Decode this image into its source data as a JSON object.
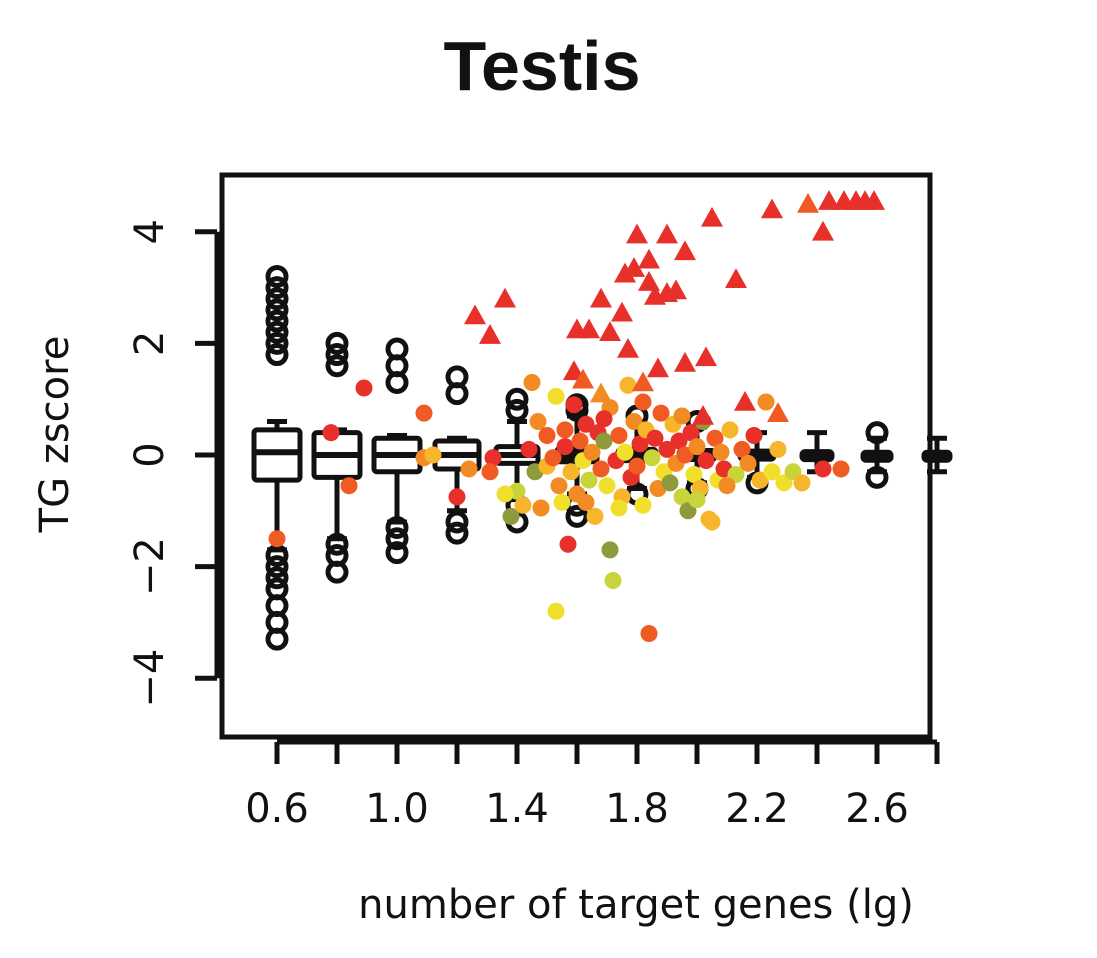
{
  "chart_data": {
    "type": "scatter",
    "title": "Testis",
    "xlabel": "number of target genes (lg)",
    "ylabel": "TG  zscore",
    "xlim": [
      0.4,
      2.85
    ],
    "ylim": [
      -5.0,
      5.0
    ],
    "xticks": [
      0.6,
      0.8,
      1.0,
      1.2,
      1.4,
      1.6,
      1.8,
      2.0,
      2.2,
      2.4,
      2.6,
      2.8
    ],
    "xtick_labels": [
      "0.6",
      "1.0",
      "1.4",
      "1.8",
      "2.2",
      "2.6"
    ],
    "xtick_label_values": [
      0.6,
      1.0,
      1.4,
      1.8,
      2.2,
      2.6
    ],
    "yticks": [
      -4,
      -2,
      0,
      2,
      4
    ],
    "ytick_labels": [
      "−4",
      "−2",
      "0",
      "2",
      "4"
    ],
    "grid": false,
    "boxplots": [
      {
        "x": 0.6,
        "q1": -0.45,
        "median": 0.05,
        "q3": 0.45,
        "whisker_low": -1.7,
        "whisker_high": 0.6,
        "outliers": [
          1.8,
          2.0,
          2.2,
          2.4,
          2.6,
          2.8,
          3.0,
          3.2,
          -1.8,
          -2.0,
          -2.2,
          -2.4,
          -2.7,
          -3.0,
          -3.3
        ]
      },
      {
        "x": 0.8,
        "q1": -0.4,
        "median": 0.0,
        "q3": 0.4,
        "whisker_low": -1.5,
        "whisker_high": 0.45,
        "outliers": [
          1.6,
          1.8,
          2.0,
          -1.6,
          -1.8,
          -2.1
        ]
      },
      {
        "x": 1.0,
        "q1": -0.3,
        "median": 0.0,
        "q3": 0.3,
        "whisker_low": -1.2,
        "whisker_high": 0.35,
        "outliers": [
          1.3,
          1.6,
          1.9,
          -1.3,
          -1.5,
          -1.75
        ]
      },
      {
        "x": 1.2,
        "q1": -0.25,
        "median": 0.0,
        "q3": 0.25,
        "whisker_low": -1.0,
        "whisker_high": 0.3,
        "outliers": [
          1.1,
          1.4,
          -1.2,
          -1.4
        ]
      },
      {
        "x": 1.4,
        "q1": -0.15,
        "median": 0.0,
        "q3": 0.15,
        "whisker_low": -0.8,
        "whisker_high": 0.6,
        "outliers": [
          0.8,
          1.0,
          -0.9,
          -1.2
        ]
      },
      {
        "x": 1.6,
        "q1": -0.12,
        "median": 0.0,
        "q3": 0.12,
        "whisker_low": -0.7,
        "whisker_high": 0.7,
        "outliers": [
          0.8,
          0.9,
          -0.9,
          -1.1
        ]
      },
      {
        "x": 1.8,
        "q1": -0.1,
        "median": 0.0,
        "q3": 0.1,
        "whisker_low": -0.6,
        "whisker_high": 0.6,
        "outliers": [
          0.7,
          -0.7
        ]
      },
      {
        "x": 2.0,
        "q1": -0.08,
        "median": 0.0,
        "q3": 0.08,
        "whisker_low": -0.5,
        "whisker_high": 0.5,
        "outliers": [
          0.6,
          -0.6
        ]
      },
      {
        "x": 2.2,
        "q1": -0.07,
        "median": 0.0,
        "q3": 0.07,
        "whisker_low": -0.4,
        "whisker_high": 0.4,
        "outliers": [
          -0.5
        ]
      },
      {
        "x": 2.4,
        "q1": -0.06,
        "median": 0.0,
        "q3": 0.06,
        "whisker_low": -0.3,
        "whisker_high": 0.4,
        "outliers": []
      },
      {
        "x": 2.6,
        "q1": -0.05,
        "median": 0.0,
        "q3": 0.05,
        "whisker_low": -0.3,
        "whisker_high": 0.3,
        "outliers": [
          0.4,
          -0.4
        ]
      },
      {
        "x": 2.8,
        "q1": -0.05,
        "median": 0.0,
        "q3": 0.05,
        "whisker_low": -0.3,
        "whisker_high": 0.3,
        "outliers": []
      }
    ],
    "triangles": [
      {
        "x": 1.26,
        "y": 2.5,
        "color": "#e8302a"
      },
      {
        "x": 1.31,
        "y": 2.15,
        "color": "#e8302a"
      },
      {
        "x": 1.36,
        "y": 2.8,
        "color": "#e8302a"
      },
      {
        "x": 1.6,
        "y": 2.25,
        "color": "#e8302a"
      },
      {
        "x": 1.64,
        "y": 2.25,
        "color": "#e8302a"
      },
      {
        "x": 1.68,
        "y": 2.8,
        "color": "#e8302a"
      },
      {
        "x": 1.71,
        "y": 2.2,
        "color": "#e8302a"
      },
      {
        "x": 1.75,
        "y": 2.55,
        "color": "#e8302a"
      },
      {
        "x": 1.77,
        "y": 1.9,
        "color": "#e8302a"
      },
      {
        "x": 1.76,
        "y": 3.25,
        "color": "#e8302a"
      },
      {
        "x": 1.8,
        "y": 3.95,
        "color": "#e8302a"
      },
      {
        "x": 1.79,
        "y": 3.35,
        "color": "#e8302a"
      },
      {
        "x": 1.84,
        "y": 3.5,
        "color": "#e8302a"
      },
      {
        "x": 1.84,
        "y": 3.1,
        "color": "#e8302a"
      },
      {
        "x": 1.86,
        "y": 2.85,
        "color": "#e8302a"
      },
      {
        "x": 1.9,
        "y": 2.9,
        "color": "#e8302a"
      },
      {
        "x": 1.9,
        "y": 3.95,
        "color": "#e8302a"
      },
      {
        "x": 1.93,
        "y": 2.95,
        "color": "#e8302a"
      },
      {
        "x": 1.96,
        "y": 3.65,
        "color": "#e8302a"
      },
      {
        "x": 1.87,
        "y": 1.55,
        "color": "#e8302a"
      },
      {
        "x": 1.96,
        "y": 1.65,
        "color": "#e8302a"
      },
      {
        "x": 2.03,
        "y": 1.75,
        "color": "#e8302a"
      },
      {
        "x": 2.05,
        "y": 4.25,
        "color": "#e8302a"
      },
      {
        "x": 2.13,
        "y": 3.15,
        "color": "#e8302a"
      },
      {
        "x": 2.25,
        "y": 4.4,
        "color": "#e8302a"
      },
      {
        "x": 2.37,
        "y": 4.5,
        "color": "#f05a23"
      },
      {
        "x": 2.44,
        "y": 4.55,
        "color": "#e8302a"
      },
      {
        "x": 2.42,
        "y": 4.0,
        "color": "#e8302a"
      },
      {
        "x": 2.49,
        "y": 4.55,
        "color": "#e8302a"
      },
      {
        "x": 2.53,
        "y": 4.55,
        "color": "#e8302a"
      },
      {
        "x": 2.56,
        "y": 4.55,
        "color": "#e8302a"
      },
      {
        "x": 2.59,
        "y": 4.55,
        "color": "#e8302a"
      },
      {
        "x": 1.59,
        "y": 1.5,
        "color": "#e8302a"
      },
      {
        "x": 1.62,
        "y": 1.35,
        "color": "#f05a23"
      },
      {
        "x": 1.68,
        "y": 1.1,
        "color": "#f28b24"
      },
      {
        "x": 1.82,
        "y": 1.3,
        "color": "#f05a23"
      },
      {
        "x": 2.16,
        "y": 0.95,
        "color": "#e8302a"
      },
      {
        "x": 2.27,
        "y": 0.75,
        "color": "#f05a23"
      },
      {
        "x": 2.02,
        "y": 0.7,
        "color": "#e8302a"
      }
    ],
    "points": [
      {
        "x": 0.6,
        "y": -1.5,
        "color": "#f05a23"
      },
      {
        "x": 0.78,
        "y": 0.4,
        "color": "#e8302a"
      },
      {
        "x": 0.84,
        "y": -0.55,
        "color": "#f05a23"
      },
      {
        "x": 0.89,
        "y": 1.2,
        "color": "#e8302a"
      },
      {
        "x": 1.09,
        "y": 0.75,
        "color": "#f05a23"
      },
      {
        "x": 1.09,
        "y": -0.05,
        "color": "#f28b24"
      },
      {
        "x": 1.12,
        "y": 0.0,
        "color": "#f7b52c"
      },
      {
        "x": 1.2,
        "y": -0.75,
        "color": "#e8302a"
      },
      {
        "x": 1.24,
        "y": -0.25,
        "color": "#f28b24"
      },
      {
        "x": 1.32,
        "y": -0.05,
        "color": "#e8302a"
      },
      {
        "x": 1.31,
        "y": -0.3,
        "color": "#f05a23"
      },
      {
        "x": 1.38,
        "y": -1.1,
        "color": "#8f9a3c"
      },
      {
        "x": 1.4,
        "y": -0.65,
        "color": "#c8d43a"
      },
      {
        "x": 1.42,
        "y": -0.9,
        "color": "#f7b52c"
      },
      {
        "x": 1.44,
        "y": 0.1,
        "color": "#e8302a"
      },
      {
        "x": 1.45,
        "y": 1.3,
        "color": "#f28b24"
      },
      {
        "x": 1.46,
        "y": -0.3,
        "color": "#8f9a3c"
      },
      {
        "x": 1.48,
        "y": -0.95,
        "color": "#f28b24"
      },
      {
        "x": 1.5,
        "y": -0.2,
        "color": "#f7b52c"
      },
      {
        "x": 1.52,
        "y": -0.05,
        "color": "#f05a23"
      },
      {
        "x": 1.53,
        "y": 1.05,
        "color": "#f0e02c"
      },
      {
        "x": 1.54,
        "y": -0.55,
        "color": "#f28b24"
      },
      {
        "x": 1.56,
        "y": 0.45,
        "color": "#f05a23"
      },
      {
        "x": 1.56,
        "y": 0.15,
        "color": "#e8302a"
      },
      {
        "x": 1.57,
        "y": -1.6,
        "color": "#e8302a"
      },
      {
        "x": 1.58,
        "y": -0.3,
        "color": "#f7b52c"
      },
      {
        "x": 1.59,
        "y": 0.9,
        "color": "#e8302a"
      },
      {
        "x": 1.6,
        "y": -0.7,
        "color": "#f28b24"
      },
      {
        "x": 1.61,
        "y": 0.25,
        "color": "#f05a23"
      },
      {
        "x": 1.62,
        "y": -0.1,
        "color": "#f0e02c"
      },
      {
        "x": 1.63,
        "y": 0.55,
        "color": "#e8302a"
      },
      {
        "x": 1.64,
        "y": -0.45,
        "color": "#c8d43a"
      },
      {
        "x": 1.65,
        "y": 0.05,
        "color": "#f28b24"
      },
      {
        "x": 1.66,
        "y": -1.1,
        "color": "#f7b52c"
      },
      {
        "x": 1.67,
        "y": 0.4,
        "color": "#e8302a"
      },
      {
        "x": 1.68,
        "y": -0.25,
        "color": "#f05a23"
      },
      {
        "x": 1.69,
        "y": 0.25,
        "color": "#8f9a3c"
      },
      {
        "x": 1.7,
        "y": -0.55,
        "color": "#f0e02c"
      },
      {
        "x": 1.71,
        "y": 0.85,
        "color": "#f28b24"
      },
      {
        "x": 1.71,
        "y": -1.7,
        "color": "#8f9a3c"
      },
      {
        "x": 1.72,
        "y": -2.25,
        "color": "#c8d43a"
      },
      {
        "x": 1.73,
        "y": -0.1,
        "color": "#e8302a"
      },
      {
        "x": 1.74,
        "y": 0.35,
        "color": "#f05a23"
      },
      {
        "x": 1.75,
        "y": -0.75,
        "color": "#f7b52c"
      },
      {
        "x": 1.76,
        "y": 0.05,
        "color": "#f0e02c"
      },
      {
        "x": 1.77,
        "y": 1.25,
        "color": "#f7b52c"
      },
      {
        "x": 1.78,
        "y": -0.4,
        "color": "#e8302a"
      },
      {
        "x": 1.79,
        "y": 0.6,
        "color": "#f28b24"
      },
      {
        "x": 1.8,
        "y": -0.2,
        "color": "#f05a23"
      },
      {
        "x": 1.81,
        "y": 0.2,
        "color": "#e8302a"
      },
      {
        "x": 1.82,
        "y": -0.9,
        "color": "#f0e02c"
      },
      {
        "x": 1.83,
        "y": 0.45,
        "color": "#f7b52c"
      },
      {
        "x": 1.84,
        "y": -3.2,
        "color": "#f05a23"
      },
      {
        "x": 1.85,
        "y": -0.05,
        "color": "#c8d43a"
      },
      {
        "x": 1.86,
        "y": 0.3,
        "color": "#e8302a"
      },
      {
        "x": 1.87,
        "y": -0.6,
        "color": "#f28b24"
      },
      {
        "x": 1.88,
        "y": 0.75,
        "color": "#f05a23"
      },
      {
        "x": 1.89,
        "y": -0.3,
        "color": "#f0e02c"
      },
      {
        "x": 1.9,
        "y": 0.1,
        "color": "#e8302a"
      },
      {
        "x": 1.91,
        "y": -0.5,
        "color": "#8f9a3c"
      },
      {
        "x": 1.92,
        "y": 0.55,
        "color": "#f7b52c"
      },
      {
        "x": 1.93,
        "y": -0.15,
        "color": "#f28b24"
      },
      {
        "x": 1.94,
        "y": 0.25,
        "color": "#e8302a"
      },
      {
        "x": 1.95,
        "y": -0.75,
        "color": "#c8d43a"
      },
      {
        "x": 1.96,
        "y": 0.0,
        "color": "#f05a23"
      },
      {
        "x": 1.97,
        "y": -1.0,
        "color": "#8f9a3c"
      },
      {
        "x": 1.98,
        "y": 0.4,
        "color": "#e8302a"
      },
      {
        "x": 1.99,
        "y": -0.35,
        "color": "#f0e02c"
      },
      {
        "x": 2.0,
        "y": 0.15,
        "color": "#f28b24"
      },
      {
        "x": 2.01,
        "y": -0.6,
        "color": "#f7b52c"
      },
      {
        "x": 2.02,
        "y": 0.6,
        "color": "#8f9a3c"
      },
      {
        "x": 2.03,
        "y": -0.1,
        "color": "#e8302a"
      },
      {
        "x": 2.04,
        "y": -1.15,
        "color": "#f7b52c"
      },
      {
        "x": 2.05,
        "y": -1.2,
        "color": "#f7b52c"
      },
      {
        "x": 2.06,
        "y": 0.3,
        "color": "#f05a23"
      },
      {
        "x": 2.07,
        "y": -0.45,
        "color": "#f0e02c"
      },
      {
        "x": 2.08,
        "y": 0.05,
        "color": "#f28b24"
      },
      {
        "x": 2.09,
        "y": -0.25,
        "color": "#e8302a"
      },
      {
        "x": 2.11,
        "y": 0.45,
        "color": "#f7b52c"
      },
      {
        "x": 2.13,
        "y": -0.35,
        "color": "#c8d43a"
      },
      {
        "x": 2.15,
        "y": 0.1,
        "color": "#f05a23"
      },
      {
        "x": 2.17,
        "y": -0.15,
        "color": "#f28b24"
      },
      {
        "x": 2.19,
        "y": 0.35,
        "color": "#e8302a"
      },
      {
        "x": 2.21,
        "y": -0.45,
        "color": "#f7b52c"
      },
      {
        "x": 2.23,
        "y": 0.95,
        "color": "#f28b24"
      },
      {
        "x": 2.25,
        "y": -0.3,
        "color": "#f0e02c"
      },
      {
        "x": 2.27,
        "y": 0.1,
        "color": "#f7b52c"
      },
      {
        "x": 2.29,
        "y": -0.5,
        "color": "#f0e02c"
      },
      {
        "x": 2.32,
        "y": -0.3,
        "color": "#c8d43a"
      },
      {
        "x": 2.35,
        "y": -0.5,
        "color": "#f7b52c"
      },
      {
        "x": 2.42,
        "y": -0.25,
        "color": "#e8302a"
      },
      {
        "x": 2.48,
        "y": -0.25,
        "color": "#f05a23"
      },
      {
        "x": 1.47,
        "y": 0.6,
        "color": "#f28b24"
      },
      {
        "x": 1.5,
        "y": 0.35,
        "color": "#f05a23"
      },
      {
        "x": 1.55,
        "y": -0.85,
        "color": "#f0e02c"
      },
      {
        "x": 1.63,
        "y": -0.85,
        "color": "#f28b24"
      },
      {
        "x": 1.69,
        "y": 0.65,
        "color": "#e8302a"
      },
      {
        "x": 1.74,
        "y": -0.95,
        "color": "#f0e02c"
      },
      {
        "x": 1.82,
        "y": 0.95,
        "color": "#f05a23"
      },
      {
        "x": 1.95,
        "y": 0.7,
        "color": "#f28b24"
      },
      {
        "x": 1.53,
        "y": -2.8,
        "color": "#f0e02c"
      },
      {
        "x": 1.36,
        "y": -0.7,
        "color": "#f0e02c"
      },
      {
        "x": 2.1,
        "y": -0.55,
        "color": "#f28b24"
      },
      {
        "x": 2.0,
        "y": -0.8,
        "color": "#c8d43a"
      }
    ]
  }
}
